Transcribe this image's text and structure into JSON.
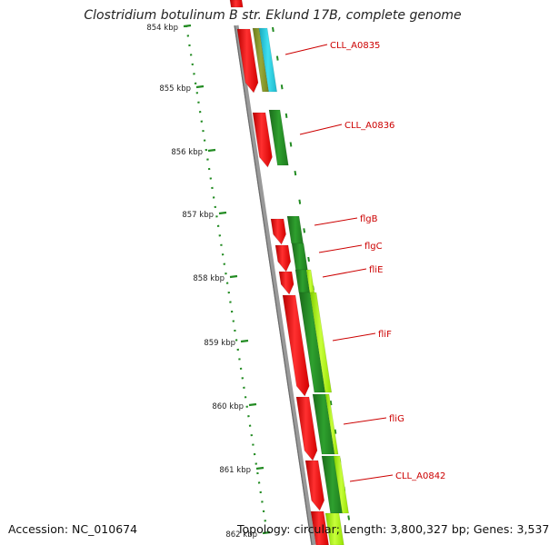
{
  "title": "Clostridium botulinum B str. Eklund 17B, complete genome",
  "accession": "Accession: NC_010674",
  "summary": "Topology: circular; Length: 3,800,327 bp; Genes: 3,537",
  "colors": {
    "forward_cds": "#ff1a1a",
    "backbone": "#8a8a8a",
    "dark_green": "#228b22",
    "light_green": "#aef20a",
    "cyan": "#22c6d8",
    "olive": "#7f8f2a",
    "label": "#cc0000",
    "tick": "#228b22"
  },
  "scale_ticks": [
    "854 kbp",
    "855 kbp",
    "856 kbp",
    "857 kbp",
    "858 kbp",
    "859 kbp",
    "860 kbp",
    "861 kbp",
    "862 kbp"
  ],
  "genes": [
    {
      "label": "CLL_A0835"
    },
    {
      "label": "CLL_A0836"
    },
    {
      "label": "flgB"
    },
    {
      "label": "flgC"
    },
    {
      "label": "fliE"
    },
    {
      "label": "fliF"
    },
    {
      "label": "fliG"
    },
    {
      "label": "CLL_A0842"
    }
  ]
}
